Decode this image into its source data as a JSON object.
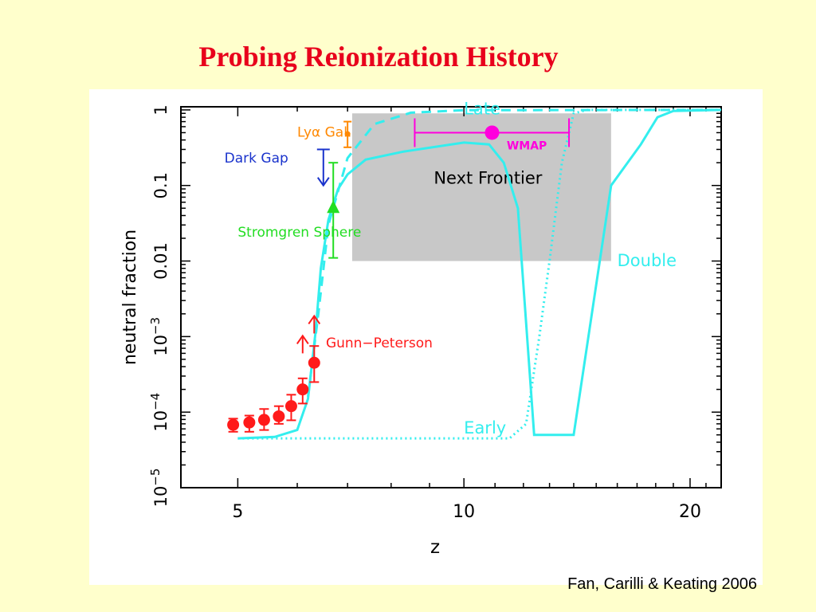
{
  "slide": {
    "title": "Probing Reionization History",
    "citation": "Fan, Carilli & Keating 2006"
  },
  "colors": {
    "background": "#ffffcc",
    "title": "#e8001c",
    "model_curves": "#33eeee",
    "gunn_peterson": "#ff1a1a",
    "stromgren": "#22dd22",
    "dark_gap": "#1a33cc",
    "lya_gal": "#ff8800",
    "wmap": "#ff00dd",
    "frontier": "#c8c8c8"
  },
  "chart_data": {
    "type": "line",
    "xlabel": "z",
    "ylabel": "neutral fraction",
    "x_scale": "log",
    "y_scale": "log",
    "xlim": [
      4.2,
      22
    ],
    "ylim": [
      1e-05,
      1.1
    ],
    "x_ticks": [
      5,
      10,
      20
    ],
    "x_tick_labels": [
      "5",
      "10",
      "20"
    ],
    "y_ticks": [
      1e-05,
      0.0001,
      0.001,
      0.01,
      0.1,
      1
    ],
    "y_tick_labels": [
      {
        "base": "10",
        "exp": "−5"
      },
      {
        "base": "10",
        "exp": "−4"
      },
      {
        "base": "10",
        "exp": "−3"
      },
      {
        "base": "0.01",
        "exp": ""
      },
      {
        "base": "0.1",
        "exp": ""
      },
      {
        "base": "1",
        "exp": ""
      }
    ],
    "grid": false,
    "frontier_region": {
      "label": "Next Frontier",
      "z": [
        7.1,
        15.7
      ],
      "y": [
        0.01,
        0.9
      ]
    },
    "series": [
      {
        "name": "Double",
        "style": "solid",
        "color": "#33eeee",
        "points": [
          [
            5.0,
            4.5e-05
          ],
          [
            5.6,
            4.7e-05
          ],
          [
            6.0,
            5.8e-05
          ],
          [
            6.2,
            0.00015
          ],
          [
            6.35,
            0.0012
          ],
          [
            6.45,
            0.008
          ],
          [
            6.6,
            0.035
          ],
          [
            6.8,
            0.09
          ],
          [
            7.0,
            0.14
          ],
          [
            7.4,
            0.22
          ],
          [
            8.3,
            0.28
          ],
          [
            10.0,
            0.37
          ],
          [
            10.8,
            0.35
          ],
          [
            11.3,
            0.2
          ],
          [
            11.8,
            0.05
          ],
          [
            12.4,
            5e-05
          ],
          [
            14.0,
            5e-05
          ],
          [
            15.7,
            0.1
          ],
          [
            17.2,
            0.35
          ],
          [
            18.1,
            0.8
          ],
          [
            19.0,
            0.97
          ],
          [
            22.0,
            1.0
          ]
        ]
      },
      {
        "name": "Early",
        "style": "dotted",
        "color": "#33eeee",
        "points": [
          [
            5.0,
            4.5e-05
          ],
          [
            11.5,
            4.5e-05
          ],
          [
            12.1,
            7e-05
          ],
          [
            12.6,
            0.001
          ],
          [
            13.0,
            0.01
          ],
          [
            13.5,
            0.2
          ],
          [
            14.0,
            0.9
          ],
          [
            14.6,
            1.0
          ],
          [
            22.0,
            1.0
          ]
        ]
      },
      {
        "name": "Late",
        "style": "dashed",
        "color": "#33eeee",
        "points": [
          [
            6.2,
            0.00016
          ],
          [
            6.4,
            0.002
          ],
          [
            6.6,
            0.03
          ],
          [
            7.0,
            0.23
          ],
          [
            7.6,
            0.65
          ],
          [
            8.5,
            0.92
          ],
          [
            10.0,
            0.99
          ],
          [
            22.0,
            1.0
          ]
        ]
      }
    ],
    "observations": [
      {
        "name": "Gunn-Peterson",
        "label": "Gunn−Peterson",
        "color": "#ff1a1a",
        "points": [
          {
            "z": 4.93,
            "y": 6.8e-05,
            "lo": 5.5e-05,
            "hi": 8.2e-05
          },
          {
            "z": 5.18,
            "y": 7.3e-05,
            "lo": 5.5e-05,
            "hi": 9e-05
          },
          {
            "z": 5.42,
            "y": 7.9e-05,
            "lo": 5.8e-05,
            "hi": 0.00011
          },
          {
            "z": 5.67,
            "y": 8.8e-05,
            "lo": 7e-05,
            "hi": 0.00012
          },
          {
            "z": 5.89,
            "y": 0.00012,
            "lo": 7.8e-05,
            "hi": 0.00017
          },
          {
            "z": 6.1,
            "y": 0.0002,
            "lo": 0.00013,
            "hi": 0.00028
          },
          {
            "z": 6.32,
            "y": 0.00045,
            "lo": 0.00025,
            "hi": 0.00075
          }
        ],
        "lower_limits": [
          {
            "z": 6.1,
            "y": 0.0006
          },
          {
            "z": 6.32,
            "y": 0.0011
          }
        ]
      },
      {
        "name": "Stromgren Sphere",
        "label": "Stromgren Sphere",
        "color": "#22dd22",
        "z": 6.7,
        "y": 0.05,
        "lo": 0.011,
        "hi": 0.2
      },
      {
        "name": "Dark Gap",
        "label": "Dark Gap",
        "color": "#1a33cc",
        "z": 6.5,
        "upper_limit_from": 0.3,
        "upper_limit_to": 0.1
      },
      {
        "name": "Lya Gal.",
        "label": "Lyα Gal.",
        "color": "#ff8800",
        "z": 7.0,
        "y": 0.48,
        "lo": 0.32,
        "hi": 0.7
      },
      {
        "name": "WMAP",
        "label": "WMAP",
        "color": "#ff00dd",
        "z": 10.9,
        "y": 0.5,
        "x_lo": 8.6,
        "x_hi": 13.8
      }
    ]
  }
}
